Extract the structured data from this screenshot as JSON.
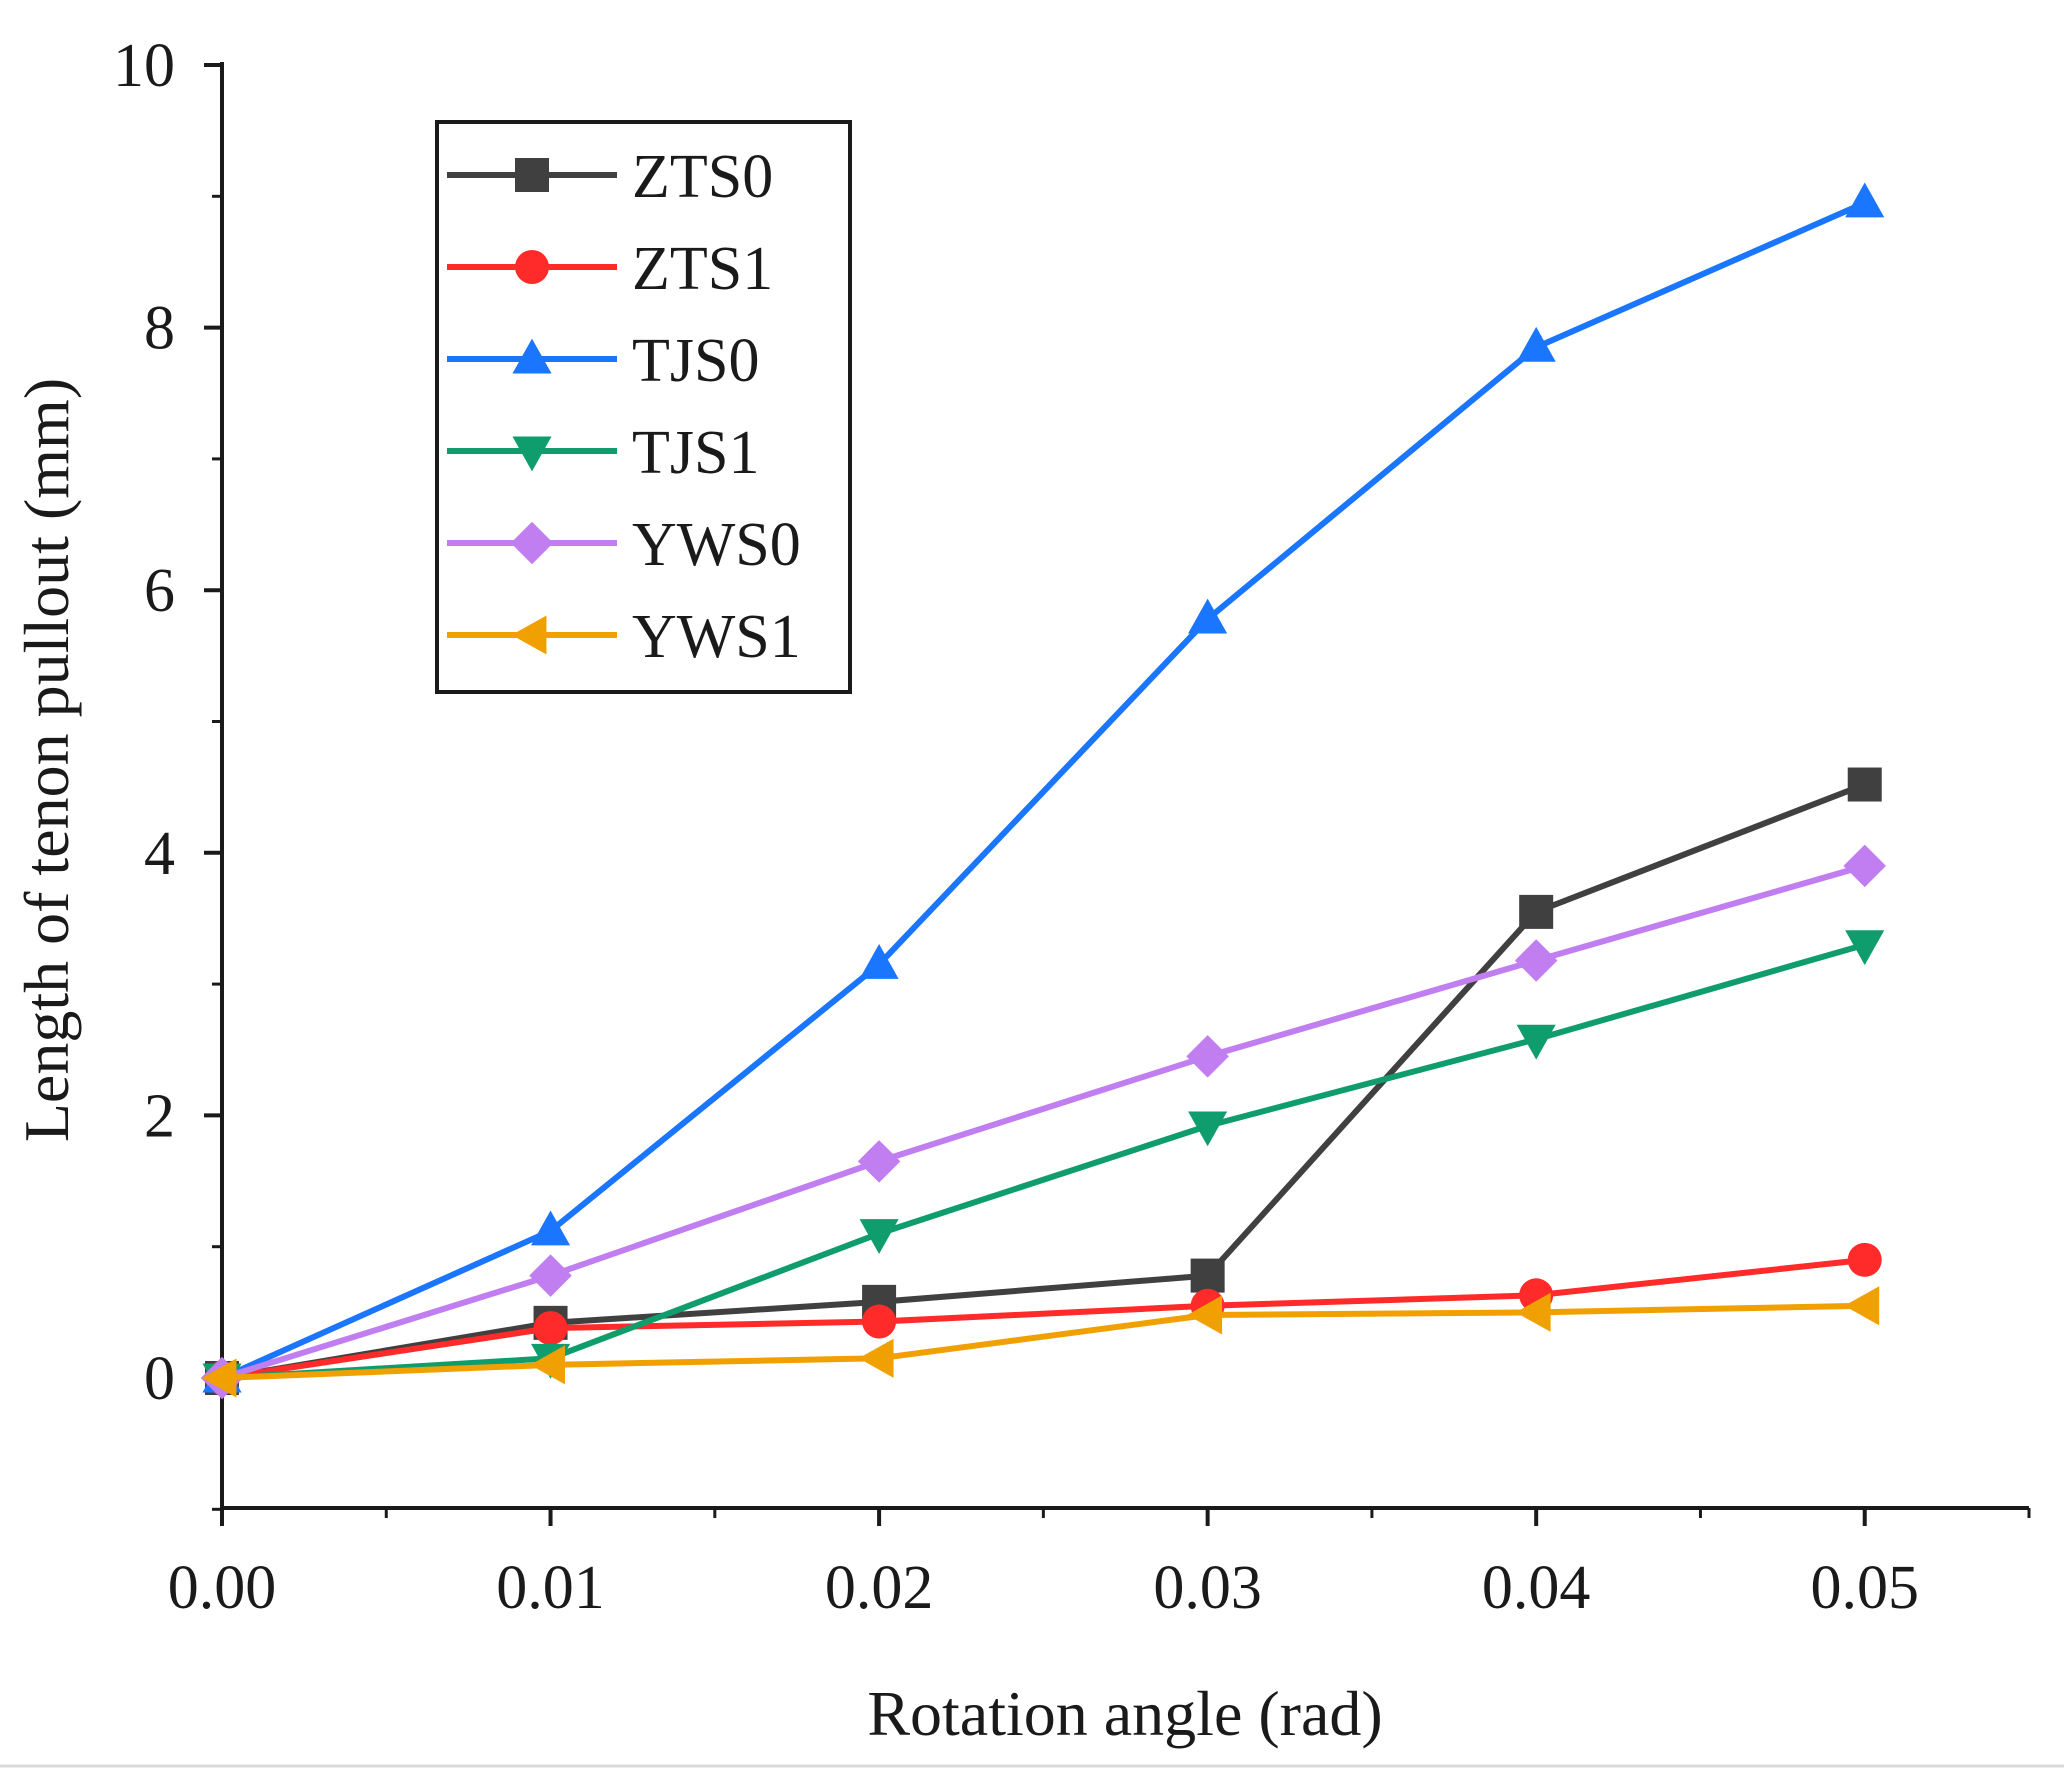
{
  "chart_data": {
    "type": "line",
    "title": "",
    "xlabel": "Rotation angle (rad)",
    "ylabel": "Length of tenon pullout (mm)",
    "xlim": [
      0,
      0.055
    ],
    "ylim": [
      -1,
      10
    ],
    "xticks": [
      0,
      0.01,
      0.02,
      0.03,
      0.04,
      0.05
    ],
    "xtick_labels": [
      "0.00",
      "0.01",
      "0.02",
      "0.03",
      "0.04",
      "0.05"
    ],
    "yticks": [
      0,
      2,
      4,
      6,
      8,
      10
    ],
    "ytick_labels": [
      "0",
      "2",
      "4",
      "6",
      "8",
      "10"
    ],
    "grid": false,
    "legend_position": "top-left",
    "x": [
      0,
      0.01,
      0.02,
      0.03,
      0.04,
      0.05
    ],
    "series": [
      {
        "name": "ZTS0",
        "color": "#404040",
        "marker": "square",
        "values": [
          0,
          0.42,
          0.58,
          0.78,
          3.55,
          4.52
        ]
      },
      {
        "name": "ZTS1",
        "color": "#ff2a2a",
        "marker": "circle",
        "values": [
          0,
          0.38,
          0.43,
          0.55,
          0.63,
          0.9
        ]
      },
      {
        "name": "TJS0",
        "color": "#1a75ff",
        "marker": "triangle-up",
        "values": [
          0,
          1.12,
          3.15,
          5.78,
          7.85,
          8.95
        ]
      },
      {
        "name": "TJS1",
        "color": "#0f9d6e",
        "marker": "triangle-down",
        "values": [
          0,
          0.15,
          1.1,
          1.92,
          2.58,
          3.3
        ]
      },
      {
        "name": "YWS0",
        "color": "#c07ef0",
        "marker": "diamond",
        "values": [
          0,
          0.78,
          1.65,
          2.45,
          3.18,
          3.9
        ]
      },
      {
        "name": "YWS1",
        "color": "#f0a000",
        "marker": "triangle-left",
        "values": [
          0,
          0.1,
          0.15,
          0.48,
          0.5,
          0.55
        ]
      }
    ]
  }
}
